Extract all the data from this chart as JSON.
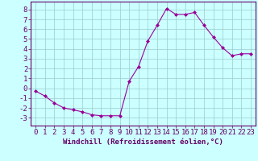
{
  "x": [
    0,
    1,
    2,
    3,
    4,
    5,
    6,
    7,
    8,
    9,
    10,
    11,
    12,
    13,
    14,
    15,
    16,
    17,
    18,
    19,
    20,
    21,
    22,
    23
  ],
  "y": [
    -0.3,
    -0.8,
    -1.5,
    -2.0,
    -2.2,
    -2.4,
    -2.7,
    -2.8,
    -2.8,
    -2.8,
    0.7,
    2.2,
    4.8,
    6.4,
    8.1,
    7.5,
    7.5,
    7.7,
    6.4,
    5.2,
    4.1,
    3.3,
    3.5,
    3.5
  ],
  "line_color": "#990099",
  "marker": "D",
  "marker_size": 2.0,
  "bg_color": "#ccffff",
  "grid_color": "#99cccc",
  "xlabel": "Windchill (Refroidissement éolien,°C)",
  "xlim": [
    -0.5,
    23.5
  ],
  "ylim": [
    -3.8,
    8.8
  ],
  "yticks": [
    -3,
    -2,
    -1,
    0,
    1,
    2,
    3,
    4,
    5,
    6,
    7,
    8
  ],
  "xticks": [
    0,
    1,
    2,
    3,
    4,
    5,
    6,
    7,
    8,
    9,
    10,
    11,
    12,
    13,
    14,
    15,
    16,
    17,
    18,
    19,
    20,
    21,
    22,
    23
  ],
  "axis_color": "#660066",
  "tick_color": "#660066",
  "font_size_label": 6.5,
  "font_size_tick": 6.5
}
